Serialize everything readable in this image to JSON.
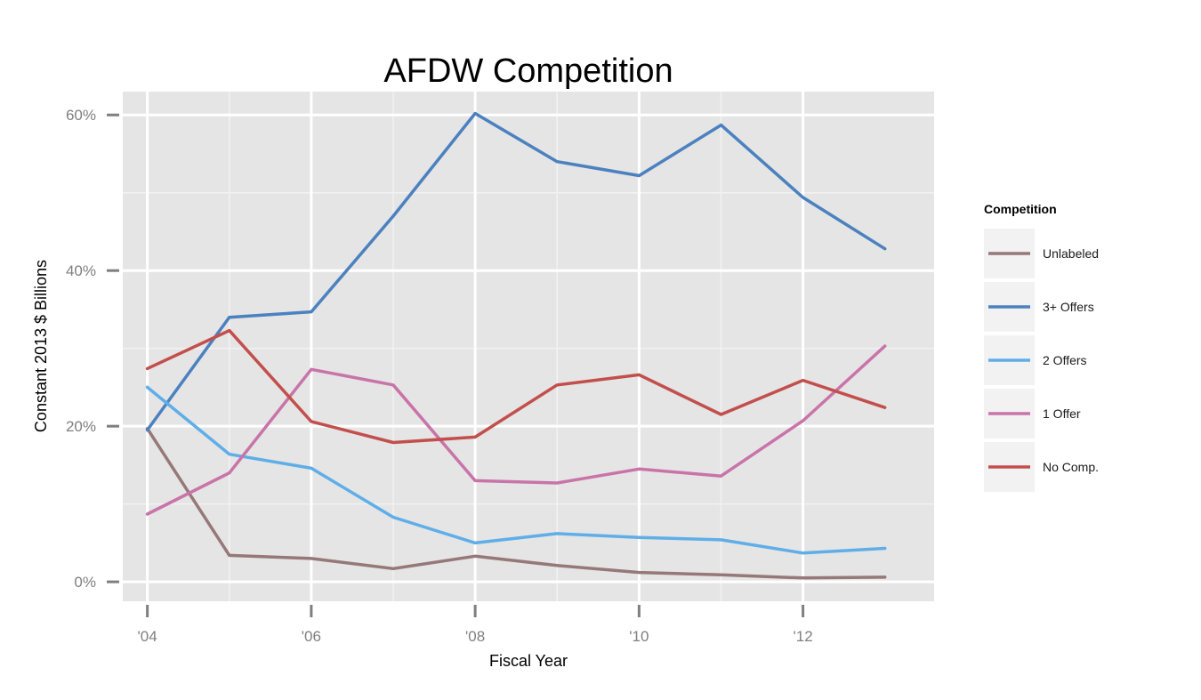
{
  "chart_data": {
    "type": "line",
    "title": "AFDW Competition",
    "xlabel": "Fiscal Year",
    "ylabel": "Constant 2013 $ Billions",
    "x": [
      2004,
      2005,
      2006,
      2007,
      2008,
      2009,
      2010,
      2011,
      2012,
      2013
    ],
    "xlim": [
      2003.7,
      2013.6
    ],
    "ylim": [
      -0.025,
      0.63
    ],
    "x_ticks": [
      2004,
      2006,
      2008,
      2010,
      2012
    ],
    "x_tick_labels": [
      "'04",
      "'06",
      "'08",
      "'10",
      "'12"
    ],
    "y_ticks": [
      0,
      0.2,
      0.4,
      0.6
    ],
    "y_tick_labels": [
      "0%",
      "20%",
      "40%",
      "60%"
    ],
    "grid": true,
    "legend": {
      "title": "Competition",
      "position": "right"
    },
    "series": [
      {
        "name": "Unlabeled",
        "color": "#967878",
        "values": [
          0.197,
          0.034,
          0.03,
          0.017,
          0.033,
          0.021,
          0.012,
          0.009,
          0.005,
          0.006
        ]
      },
      {
        "name": "3+ Offers",
        "color": "#4c81bf",
        "values": [
          0.195,
          0.34,
          0.347,
          0.47,
          0.602,
          0.54,
          0.522,
          0.587,
          0.494,
          0.428
        ]
      },
      {
        "name": "2 Offers",
        "color": "#5faee8",
        "values": [
          0.25,
          0.164,
          0.146,
          0.083,
          0.05,
          0.062,
          0.057,
          0.054,
          0.037,
          0.043
        ]
      },
      {
        "name": "1 Offer",
        "color": "#c974a9",
        "values": [
          0.087,
          0.14,
          0.273,
          0.253,
          0.13,
          0.127,
          0.145,
          0.136,
          0.207,
          0.303
        ]
      },
      {
        "name": "No Comp.",
        "color": "#c24f4c",
        "values": [
          0.274,
          0.323,
          0.206,
          0.179,
          0.186,
          0.253,
          0.266,
          0.215,
          0.259,
          0.224
        ]
      }
    ]
  }
}
